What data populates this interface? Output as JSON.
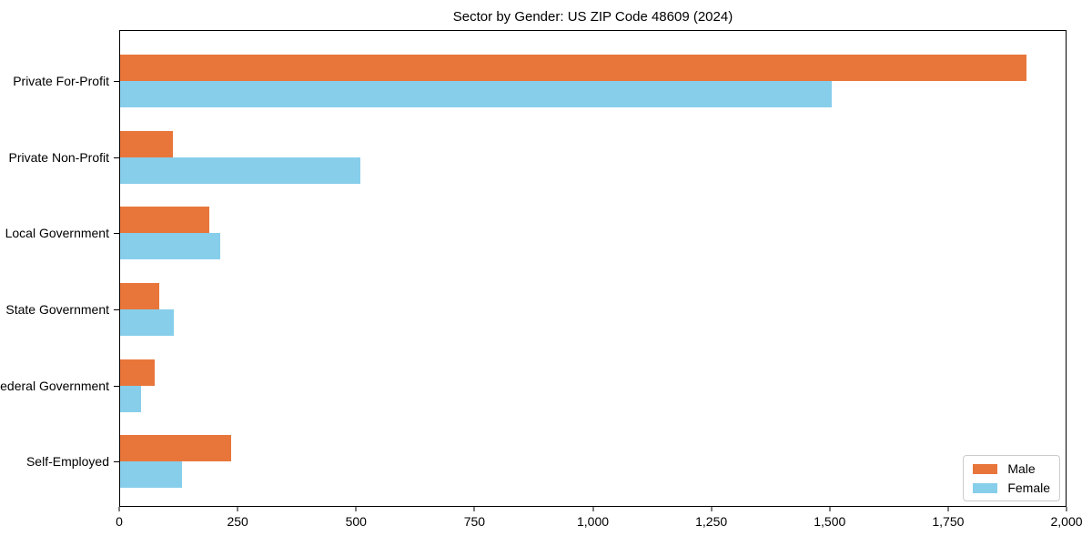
{
  "chart_data": {
    "type": "bar",
    "orientation": "horizontal",
    "title": "Sector by Gender: US ZIP Code 48609 (2024)",
    "categories": [
      "Private For-Profit",
      "Private Non-Profit",
      "Local Government",
      "State Government",
      "Federal Government",
      "Self-Employed"
    ],
    "series": [
      {
        "name": "Male",
        "color": "#e8763b",
        "values": [
          1918,
          112,
          188,
          82,
          74,
          235
        ]
      },
      {
        "name": "Female",
        "color": "#87ceeb",
        "values": [
          1505,
          508,
          211,
          114,
          45,
          131
        ]
      }
    ],
    "xlim": [
      0,
      2000
    ],
    "xticks": [
      0,
      250,
      500,
      750,
      1000,
      1250,
      1500,
      1750,
      2000
    ],
    "xtick_labels": [
      "0",
      "250",
      "500",
      "750",
      "1,000",
      "1,250",
      "1,500",
      "1,750",
      "2,000"
    ],
    "xlabel": "",
    "ylabel": "",
    "grid": false,
    "legend": {
      "position": "lower right",
      "entries": [
        "Male",
        "Female"
      ]
    }
  }
}
